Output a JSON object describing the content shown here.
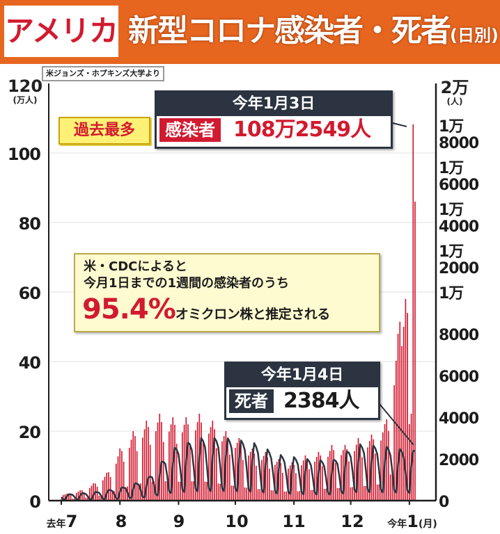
{
  "header": {
    "country": "アメリカ",
    "title": "新型コロナ感染者・死者",
    "subtitle": "(日別)"
  },
  "source": "米ジョンズ・ホプキンズ大学より",
  "colors": {
    "header_bg": "#e6661f",
    "cases_bar": "#d21a2f",
    "deaths_line": "#2b3440",
    "callout_dark": "#2b3440",
    "highlight_yellow": "#fff176"
  },
  "axes": {
    "left_unit_line1": "120",
    "left_unit_line2": "(万人)",
    "right_unit_line1": "2万",
    "right_unit_line2": "(人)",
    "left_ticks": [
      "100",
      "80",
      "60",
      "40",
      "20",
      "0"
    ],
    "right_ticks": [
      "1万8000",
      "1万6000",
      "1万4000",
      "1万2000",
      "1万",
      "8000",
      "6000",
      "4000",
      "2000",
      "0"
    ],
    "x_ticks": [
      {
        "small": "去年",
        "big": "7"
      },
      {
        "small": "",
        "big": "8"
      },
      {
        "small": "",
        "big": "9"
      },
      {
        "small": "",
        "big": "10"
      },
      {
        "small": "",
        "big": "11"
      },
      {
        "small": "",
        "big": "12"
      },
      {
        "small": "今年",
        "big": "1",
        "suffix": "(月)"
      }
    ]
  },
  "annotations": {
    "record_tag": "過去最多",
    "cases_callout": {
      "date": "今年1月3日",
      "label": "感染者",
      "value": "108万2549人"
    },
    "deaths_callout": {
      "date": "今年1月4日",
      "label": "死者",
      "value": "2384人"
    },
    "info_line1": "米・CDCによると",
    "info_line2": "今月1日までの1週間の感染者のうち",
    "info_pct": "95.4%",
    "info_rest": "オミクロン株と推定される"
  },
  "chart_data": {
    "type": "bar",
    "title": "新型コロナ感染者・死者(日別)",
    "x_range": [
      "2021-07-01",
      "2022-01-04"
    ],
    "series": [
      {
        "name": "感染者",
        "axis": "left",
        "unit": "万人",
        "ylim": [
          0,
          120
        ],
        "weekly_pattern": [
          2.5,
          9,
          10,
          11,
          10,
          7.5,
          2.5
        ],
        "weekly_peaks_approx": [
          {
            "week_start": "2021-07-01",
            "peak": 2
          },
          {
            "week_start": "2021-07-08",
            "peak": 3
          },
          {
            "week_start": "2021-07-15",
            "peak": 5
          },
          {
            "week_start": "2021-07-22",
            "peak": 8
          },
          {
            "week_start": "2021-07-29",
            "peak": 15
          },
          {
            "week_start": "2021-08-05",
            "peak": 20
          },
          {
            "week_start": "2021-08-12",
            "peak": 23
          },
          {
            "week_start": "2021-08-19",
            "peak": 25
          },
          {
            "week_start": "2021-08-26",
            "peak": 24
          },
          {
            "week_start": "2021-09-02",
            "peak": 24
          },
          {
            "week_start": "2021-09-09",
            "peak": 25
          },
          {
            "week_start": "2021-09-16",
            "peak": 23
          },
          {
            "week_start": "2021-09-23",
            "peak": 20
          },
          {
            "week_start": "2021-09-30",
            "peak": 18
          },
          {
            "week_start": "2021-10-07",
            "peak": 15
          },
          {
            "week_start": "2021-10-14",
            "peak": 14
          },
          {
            "week_start": "2021-10-21",
            "peak": 12
          },
          {
            "week_start": "2021-10-28",
            "peak": 11
          },
          {
            "week_start": "2021-11-04",
            "peak": 13
          },
          {
            "week_start": "2021-11-11",
            "peak": 14
          },
          {
            "week_start": "2021-11-18",
            "peak": 16
          },
          {
            "week_start": "2021-11-25",
            "peak": 16
          },
          {
            "week_start": "2021-12-02",
            "peak": 18
          },
          {
            "week_start": "2021-12-09",
            "peak": 19
          },
          {
            "week_start": "2021-12-16",
            "peak": 22
          },
          {
            "week_start": "2021-12-23",
            "peak": 48
          },
          {
            "week_start": "2021-12-30",
            "peak": 108.25
          }
        ],
        "final_days": [
          {
            "date": "2021-12-29",
            "value": 50
          },
          {
            "date": "2021-12-30",
            "value": 58
          },
          {
            "date": "2021-12-31",
            "value": 54
          },
          {
            "date": "2022-01-01",
            "value": 22
          },
          {
            "date": "2022-01-02",
            "value": 25
          },
          {
            "date": "2022-01-03",
            "value": 108.25
          },
          {
            "date": "2022-01-04",
            "value": 86
          }
        ]
      },
      {
        "name": "死者",
        "axis": "right",
        "unit": "人",
        "ylim": [
          0,
          20000
        ],
        "weekly_pattern": [
          0.15,
          0.7,
          1.0,
          0.95,
          0.85,
          0.55,
          0.2
        ],
        "weekly_peaks_approx": [
          {
            "week_start": "2021-07-01",
            "peak": 300
          },
          {
            "week_start": "2021-07-15",
            "peak": 400
          },
          {
            "week_start": "2021-07-29",
            "peak": 600
          },
          {
            "week_start": "2021-08-12",
            "peak": 1000
          },
          {
            "week_start": "2021-08-26",
            "peak": 2500
          },
          {
            "week_start": "2021-09-09",
            "peak": 3000
          },
          {
            "week_start": "2021-09-23",
            "peak": 3000
          },
          {
            "week_start": "2021-10-07",
            "peak": 2800
          },
          {
            "week_start": "2021-10-21",
            "peak": 2200
          },
          {
            "week_start": "2021-11-04",
            "peak": 2000
          },
          {
            "week_start": "2021-11-18",
            "peak": 1900
          },
          {
            "week_start": "2021-12-02",
            "peak": 2700
          },
          {
            "week_start": "2021-12-16",
            "peak": 2600
          },
          {
            "week_start": "2021-12-30",
            "peak": 2384
          }
        ]
      }
    ]
  }
}
